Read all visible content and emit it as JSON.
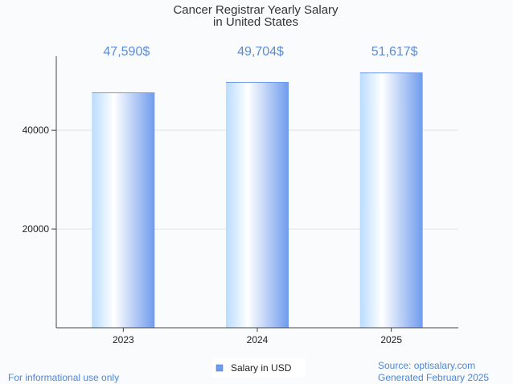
{
  "chart_data": {
    "type": "bar",
    "title_lines": [
      "Cancer Registrar Yearly Salary",
      "in United States"
    ],
    "categories": [
      "2023",
      "2024",
      "2025"
    ],
    "series": [
      {
        "name": "Salary in USD",
        "values": [
          47590,
          49704,
          51617
        ]
      }
    ],
    "data_labels": [
      "47,590$",
      "49,704$",
      "51,617$"
    ],
    "y_ticks": [
      20000,
      40000
    ],
    "ylim": [
      0,
      55000
    ],
    "grid": true,
    "legend_position": "bottom-center",
    "colors": {
      "bar_light": "#ffffff",
      "bar_mid": "#b9dcff",
      "bar_dark": "#6f9bed",
      "label": "#5b8bd6",
      "legend_swatch": "#6f9bed"
    }
  },
  "footer": {
    "left": "For informational use only",
    "source": "Source: optisalary.com",
    "generated": "Generated February 2025"
  }
}
